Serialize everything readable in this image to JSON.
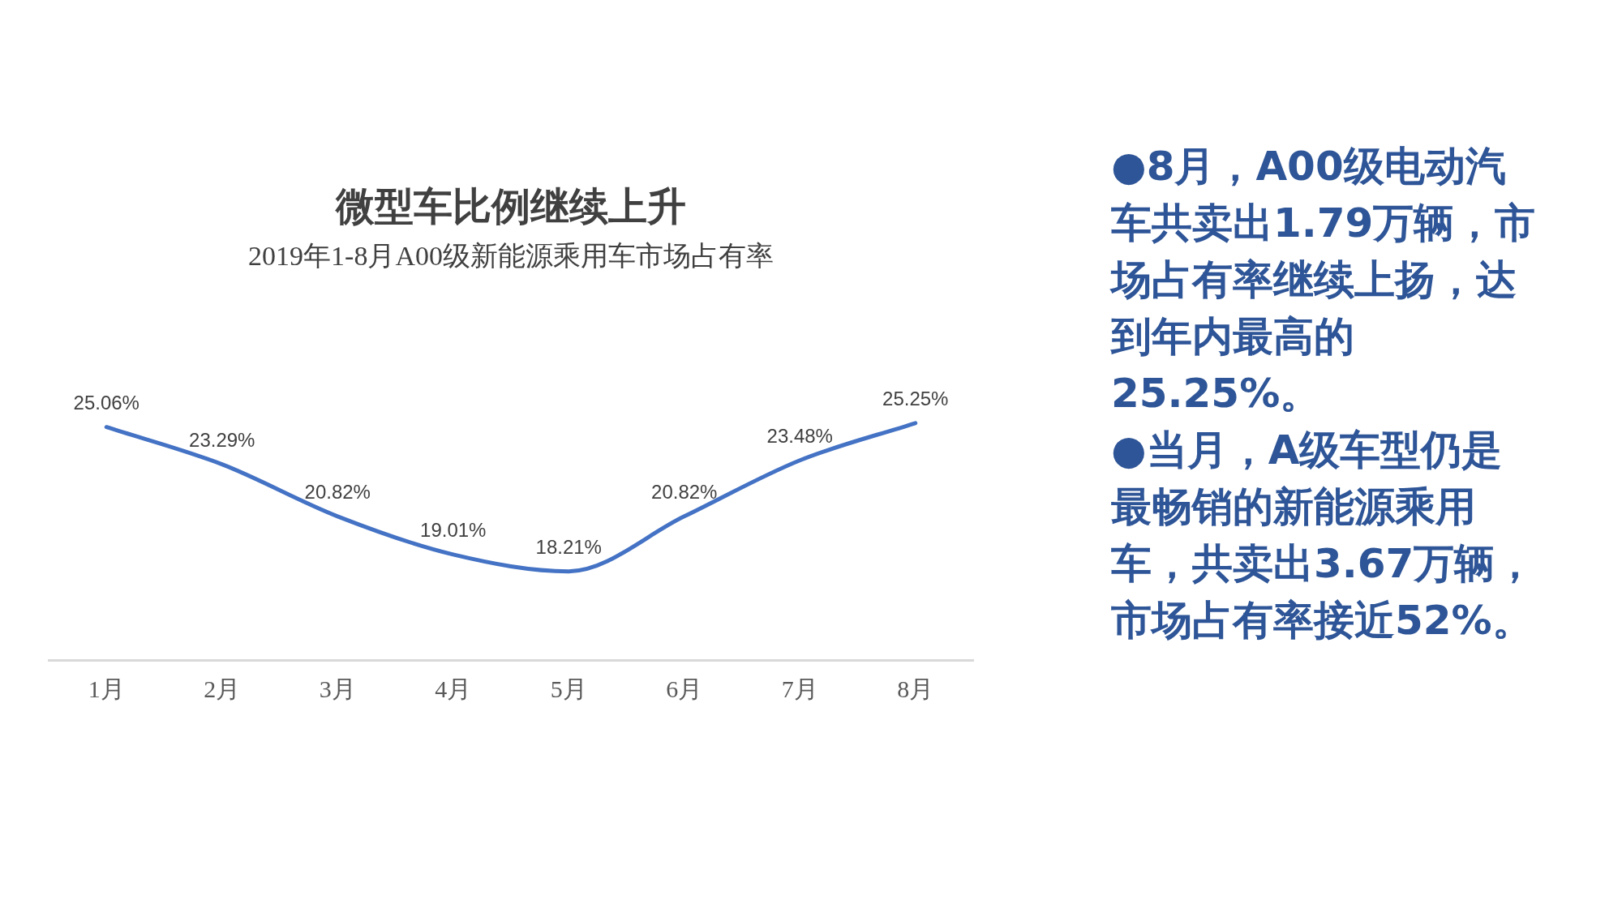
{
  "chart_data": {
    "type": "line",
    "title": "微型车比例继续上升",
    "subtitle": "2019年1-8月A00级新能源乘用车市场占有率",
    "categories": [
      "1月",
      "2月",
      "3月",
      "4月",
      "5月",
      "6月",
      "7月",
      "8月"
    ],
    "series": [
      {
        "color": "#4472c4",
        "values": [
          25.06,
          23.29,
          20.82,
          19.01,
          18.21,
          20.82,
          23.48,
          25.25
        ],
        "value_labels": [
          "25.06%",
          "23.29%",
          "20.82%",
          "19.01%",
          "18.21%",
          "20.82%",
          "23.48%",
          "25.25%"
        ]
      }
    ],
    "grid": false,
    "legend": false,
    "marker": "none",
    "line_style": "solid",
    "tick_labels": "x",
    "annotations": [
      "●8月，A00级电动汽车共卖出1.79万辆，市场占有率继续上扬，达到年内最高的25.25%。",
      "●当月，A级车型仍是最畅销的新能源乘用车，共卖出3.67万辆，市场占有率接近52%。"
    ]
  }
}
